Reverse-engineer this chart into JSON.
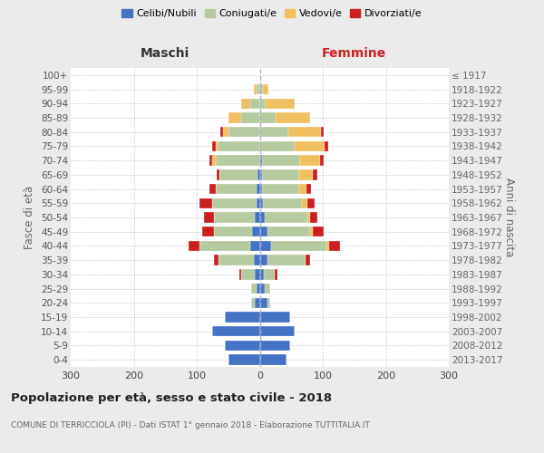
{
  "age_groups": [
    "0-4",
    "5-9",
    "10-14",
    "15-19",
    "20-24",
    "25-29",
    "30-34",
    "35-39",
    "40-44",
    "45-49",
    "50-54",
    "55-59",
    "60-64",
    "65-69",
    "70-74",
    "75-79",
    "80-84",
    "85-89",
    "90-94",
    "95-99",
    "100+"
  ],
  "birth_years": [
    "2013-2017",
    "2008-2012",
    "2003-2007",
    "1998-2002",
    "1993-1997",
    "1988-1992",
    "1983-1987",
    "1978-1982",
    "1973-1977",
    "1968-1972",
    "1963-1967",
    "1958-1962",
    "1953-1957",
    "1948-1952",
    "1943-1947",
    "1938-1942",
    "1933-1937",
    "1928-1932",
    "1923-1927",
    "1918-1922",
    "≤ 1917"
  ],
  "males_celibi": [
    50,
    55,
    75,
    55,
    8,
    5,
    8,
    10,
    15,
    12,
    8,
    5,
    5,
    4,
    0,
    0,
    0,
    0,
    0,
    0,
    0
  ],
  "males_coniugati": [
    0,
    0,
    0,
    0,
    5,
    8,
    22,
    55,
    80,
    60,
    65,
    70,
    65,
    60,
    70,
    65,
    50,
    30,
    15,
    5,
    0
  ],
  "males_vedovi": [
    0,
    0,
    0,
    0,
    0,
    0,
    0,
    0,
    0,
    0,
    0,
    0,
    0,
    0,
    5,
    5,
    8,
    20,
    15,
    5,
    0
  ],
  "males_divorziati": [
    0,
    0,
    0,
    0,
    0,
    0,
    3,
    8,
    18,
    20,
    15,
    20,
    10,
    5,
    5,
    5,
    5,
    0,
    0,
    0,
    0
  ],
  "females_nubili": [
    42,
    48,
    55,
    48,
    12,
    8,
    6,
    12,
    18,
    12,
    8,
    5,
    4,
    4,
    4,
    0,
    0,
    0,
    0,
    0,
    0
  ],
  "females_coniugate": [
    0,
    0,
    0,
    0,
    4,
    8,
    18,
    60,
    88,
    68,
    68,
    62,
    58,
    58,
    60,
    55,
    45,
    25,
    10,
    5,
    0
  ],
  "females_vedove": [
    0,
    0,
    0,
    0,
    0,
    0,
    0,
    0,
    4,
    4,
    4,
    8,
    12,
    22,
    32,
    48,
    52,
    55,
    45,
    8,
    0
  ],
  "females_divorziate": [
    0,
    0,
    0,
    0,
    0,
    0,
    4,
    8,
    18,
    18,
    12,
    12,
    8,
    8,
    5,
    5,
    4,
    0,
    0,
    0,
    0
  ],
  "color_celibi": "#4472c4",
  "color_coniugati": "#b5ca9f",
  "color_vedovi": "#f0c060",
  "color_divorziati": "#cc2020",
  "title": "Popolazione per età, sesso e stato civile - 2018",
  "subtitle": "COMUNE DI TERRICCIOLA (PI) - Dati ISTAT 1° gennaio 2018 - Elaborazione TUTTITALIA.IT",
  "ylabel_left": "Fasce di età",
  "ylabel_right": "Anni di nascita",
  "label_maschi": "Maschi",
  "label_femmine": "Femmine",
  "legend_labels": [
    "Celibi/Nubili",
    "Coniugati/e",
    "Vedovi/e",
    "Divorziati/e"
  ],
  "xlim": 300,
  "bg_color": "#ebebeb",
  "plot_bg": "#ffffff"
}
